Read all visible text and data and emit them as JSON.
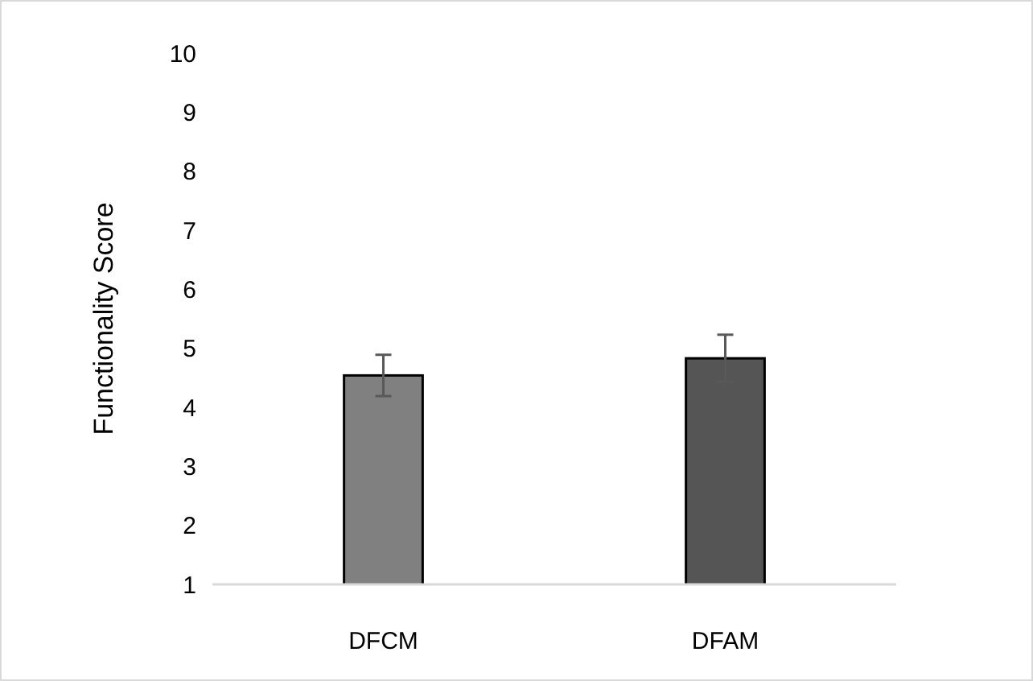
{
  "chart_data": {
    "type": "bar",
    "ylabel": "Functionality Score",
    "categories": [
      "DFCM",
      "DFAM"
    ],
    "values": [
      4.54,
      4.83
    ],
    "errors": [
      0.35,
      0.4
    ],
    "colors": [
      "#808080",
      "#555555"
    ],
    "ylim": [
      1,
      10
    ],
    "yticks": [
      1,
      2,
      3,
      4,
      5,
      6,
      7,
      8,
      9,
      10
    ],
    "grid": false
  }
}
